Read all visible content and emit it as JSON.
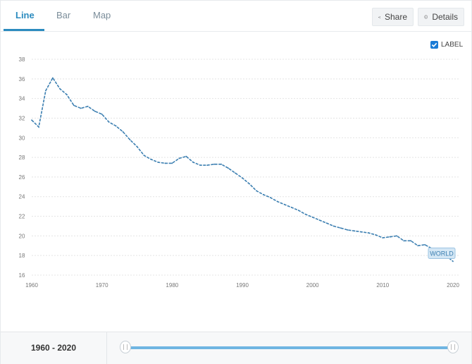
{
  "tabs": [
    {
      "label": "Line",
      "active": true
    },
    {
      "label": "Bar",
      "active": false
    },
    {
      "label": "Map",
      "active": false
    }
  ],
  "actions": {
    "share_label": "Share",
    "details_label": "Details"
  },
  "label_toggle": {
    "label": "LABEL",
    "checked": true
  },
  "range": {
    "label": "1960 - 2020",
    "start": 1960,
    "end": 2020
  },
  "colors": {
    "accent": "#2b8bbf",
    "line": "#3c7fb1",
    "slider": "#6fb5e2",
    "checkbox": "#1a7bd6"
  },
  "chart_data": {
    "type": "line",
    "series": [
      {
        "name": "WORLD",
        "x": [
          1960,
          1961,
          1962,
          1963,
          1964,
          1965,
          1966,
          1967,
          1968,
          1969,
          1970,
          1971,
          1972,
          1973,
          1974,
          1975,
          1976,
          1977,
          1978,
          1979,
          1980,
          1981,
          1982,
          1983,
          1984,
          1985,
          1986,
          1987,
          1988,
          1989,
          1990,
          1991,
          1992,
          1993,
          1994,
          1995,
          1996,
          1997,
          1998,
          1999,
          2000,
          2001,
          2002,
          2003,
          2004,
          2005,
          2006,
          2007,
          2008,
          2009,
          2010,
          2011,
          2012,
          2013,
          2014,
          2015,
          2016,
          2017,
          2018,
          2019,
          2020
        ],
        "values": [
          31.8,
          31.1,
          34.8,
          36.1,
          35.0,
          34.4,
          33.3,
          33.0,
          33.2,
          32.7,
          32.4,
          31.6,
          31.2,
          30.6,
          29.8,
          29.1,
          28.2,
          27.8,
          27.5,
          27.4,
          27.4,
          27.9,
          28.1,
          27.5,
          27.2,
          27.2,
          27.3,
          27.3,
          26.9,
          26.4,
          25.9,
          25.3,
          24.6,
          24.2,
          23.9,
          23.5,
          23.2,
          22.9,
          22.6,
          22.2,
          21.9,
          21.6,
          21.3,
          21.0,
          20.8,
          20.6,
          20.5,
          20.4,
          20.3,
          20.1,
          19.8,
          19.9,
          20.0,
          19.5,
          19.5,
          19.0,
          19.1,
          18.7,
          18.4,
          18.0,
          17.4
        ]
      }
    ],
    "x_ticks": [
      1960,
      1970,
      1980,
      1990,
      2000,
      2010,
      2020
    ],
    "y_ticks": [
      16,
      18,
      20,
      22,
      24,
      26,
      28,
      30,
      32,
      34,
      36,
      38
    ],
    "xlim": [
      1960,
      2020
    ],
    "ylim": [
      16,
      38
    ],
    "end_label": "WORLD",
    "grid": "horizontal-dashed",
    "title": "",
    "xlabel": "",
    "ylabel": ""
  }
}
